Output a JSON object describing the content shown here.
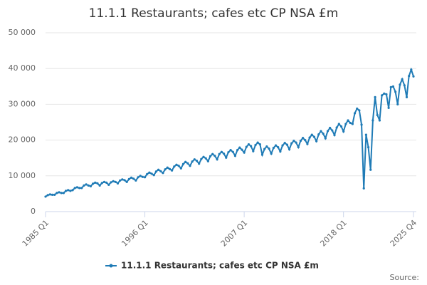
{
  "chart_data": {
    "type": "line",
    "title": "11.1.1 Restaurants; cafes etc CP NSA £m",
    "source": "Source:",
    "categories": [
      "1985 Q1",
      null,
      null,
      null,
      null,
      null,
      null,
      null,
      null,
      null,
      null,
      null,
      null,
      null,
      null,
      null,
      null,
      null,
      null,
      null,
      null,
      null,
      null,
      null,
      null,
      null,
      null,
      null,
      null,
      null,
      null,
      null,
      null,
      null,
      null,
      null,
      null,
      null,
      null,
      null,
      null,
      null,
      null,
      null,
      "1996 Q1",
      null,
      null,
      null,
      null,
      null,
      null,
      null,
      null,
      null,
      null,
      null,
      null,
      null,
      null,
      null,
      null,
      null,
      null,
      null,
      null,
      null,
      null,
      null,
      null,
      null,
      null,
      null,
      null,
      null,
      null,
      null,
      null,
      null,
      null,
      null,
      null,
      null,
      null,
      null,
      null,
      null,
      null,
      null,
      "2007 Q1",
      null,
      null,
      null,
      null,
      null,
      null,
      null,
      null,
      null,
      null,
      null,
      null,
      null,
      null,
      null,
      null,
      null,
      null,
      null,
      null,
      null,
      null,
      null,
      null,
      null,
      null,
      null,
      null,
      null,
      null,
      null,
      null,
      null,
      null,
      null,
      null,
      null,
      null,
      null,
      null,
      null,
      null,
      null,
      "2018 Q1",
      null,
      null,
      null,
      null,
      null,
      null,
      null,
      null,
      null,
      null,
      null,
      null,
      null,
      null,
      null,
      null,
      null,
      null,
      null,
      null,
      null,
      null,
      null,
      null,
      null,
      null,
      null,
      null,
      null,
      null,
      "2025 Q4"
    ],
    "series": [
      {
        "name": "11.1.1 Restaurants; cafes etc CP NSA £m",
        "color": "#1f7bb6",
        "values": [
          4200,
          4600,
          4800,
          4700,
          4700,
          5200,
          5400,
          5200,
          5200,
          5800,
          6000,
          5800,
          6000,
          6600,
          6800,
          6600,
          6600,
          7300,
          7600,
          7300,
          7100,
          7800,
          8100,
          7900,
          7300,
          8000,
          8300,
          8100,
          7500,
          8200,
          8500,
          8300,
          7900,
          8700,
          9000,
          8800,
          8300,
          9100,
          9500,
          9200,
          8700,
          9600,
          10000,
          9700,
          9600,
          10500,
          10900,
          10600,
          10200,
          11200,
          11700,
          11300,
          10800,
          11800,
          12300,
          11900,
          11500,
          12600,
          13100,
          12800,
          12100,
          13300,
          13900,
          13500,
          12800,
          14000,
          14600,
          14200,
          13400,
          14700,
          15300,
          14900,
          14100,
          15500,
          16100,
          15600,
          14600,
          16100,
          16700,
          16200,
          15100,
          16600,
          17200,
          16700,
          15600,
          17200,
          17900,
          17300,
          16500,
          18100,
          18800,
          18300,
          16900,
          18600,
          19300,
          18800,
          15900,
          17500,
          18200,
          17600,
          16200,
          17800,
          18500,
          18000,
          16800,
          18500,
          19200,
          18700,
          17400,
          19100,
          19800,
          19300,
          18000,
          19800,
          20600,
          20000,
          18900,
          20700,
          21500,
          20900,
          19700,
          21600,
          22500,
          21800,
          20500,
          22500,
          23400,
          22700,
          21400,
          23500,
          24500,
          23800,
          22400,
          24500,
          25500,
          24800,
          24500,
          27500,
          28800,
          28300,
          24300,
          6500,
          21500,
          18000,
          11700,
          25500,
          32000,
          27000,
          25500,
          32500,
          33000,
          32800,
          29000,
          34800,
          35000,
          33500,
          30000,
          35500,
          37000,
          35300,
          32000,
          37900,
          39700,
          37800
        ]
      }
    ],
    "ylim": [
      0,
      50000
    ],
    "yticks": [
      0,
      {
        "value": 10000,
        "label": "10 000"
      },
      {
        "value": 20000,
        "label": "20 000"
      },
      {
        "value": 30000,
        "label": "30 000"
      },
      {
        "value": 40000,
        "label": "40 000"
      },
      {
        "value": 50000,
        "label": "50 000"
      }
    ],
    "grid": true,
    "legend": "bottom"
  }
}
